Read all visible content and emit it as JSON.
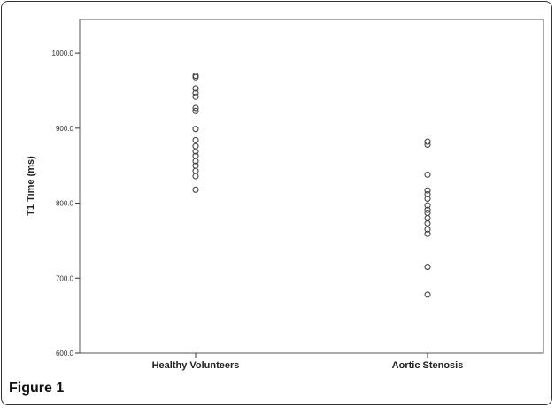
{
  "figure_label": "Figure 1",
  "chart_data": {
    "type": "scatter",
    "title": "",
    "xlabel": "",
    "ylabel": "T1 Time (ms)",
    "ylim": [
      600,
      1045
    ],
    "yticks": [
      600,
      700,
      800,
      900,
      1000
    ],
    "ytick_labels": [
      "600.0",
      "700.0",
      "800.0",
      "900.0",
      "1000.0"
    ],
    "grid": false,
    "categories": [
      "Healthy Volunteers",
      "Aortic Stenosis"
    ],
    "series": [
      {
        "category": "Healthy Volunteers",
        "values": [
          970,
          968,
          953,
          947,
          942,
          927,
          923,
          899,
          884,
          876,
          869,
          863,
          856,
          850,
          843,
          836,
          818
        ]
      },
      {
        "category": "Aortic Stenosis",
        "values": [
          882,
          878,
          838,
          817,
          812,
          806,
          797,
          791,
          787,
          780,
          773,
          765,
          759,
          715,
          678
        ]
      }
    ],
    "colors": {
      "marker": "#444444",
      "plot_bg": "#ffffff",
      "axis": "#333333"
    }
  }
}
